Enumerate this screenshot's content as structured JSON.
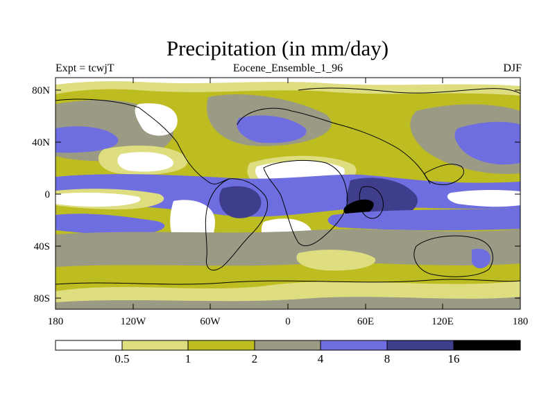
{
  "title": "Precipitation (in mm/day)",
  "left_label": "Expt = tcwjT",
  "center_label": "Eocene_Ensemble_1_96",
  "right_label": "DJF",
  "colors": {
    "level0": "#ffffff",
    "level1": "#dedd80",
    "level2": "#bdbd21",
    "level3": "#9b9a85",
    "level4": "#6f6ee0",
    "level5": "#3e3e8c",
    "level6": "#000000",
    "coast": "#000000"
  },
  "lat_ticks": [
    "80N",
    "40N",
    "0",
    "40S",
    "80S"
  ],
  "lon_ticks": [
    "180",
    "120W",
    "60W",
    "0",
    "60E",
    "120E",
    "180"
  ],
  "colorbar_labels": [
    "0.5",
    "1",
    "2",
    "4",
    "8",
    "16"
  ],
  "chart_data": {
    "type": "heatmap",
    "title": "Precipitation (in mm/day)",
    "xlabel": "",
    "ylabel": "",
    "x_range": [
      -180,
      180
    ],
    "y_range": [
      -90,
      90
    ],
    "season": "DJF",
    "levels": [
      0.5,
      1,
      2,
      4,
      8,
      16
    ],
    "grid": false
  }
}
